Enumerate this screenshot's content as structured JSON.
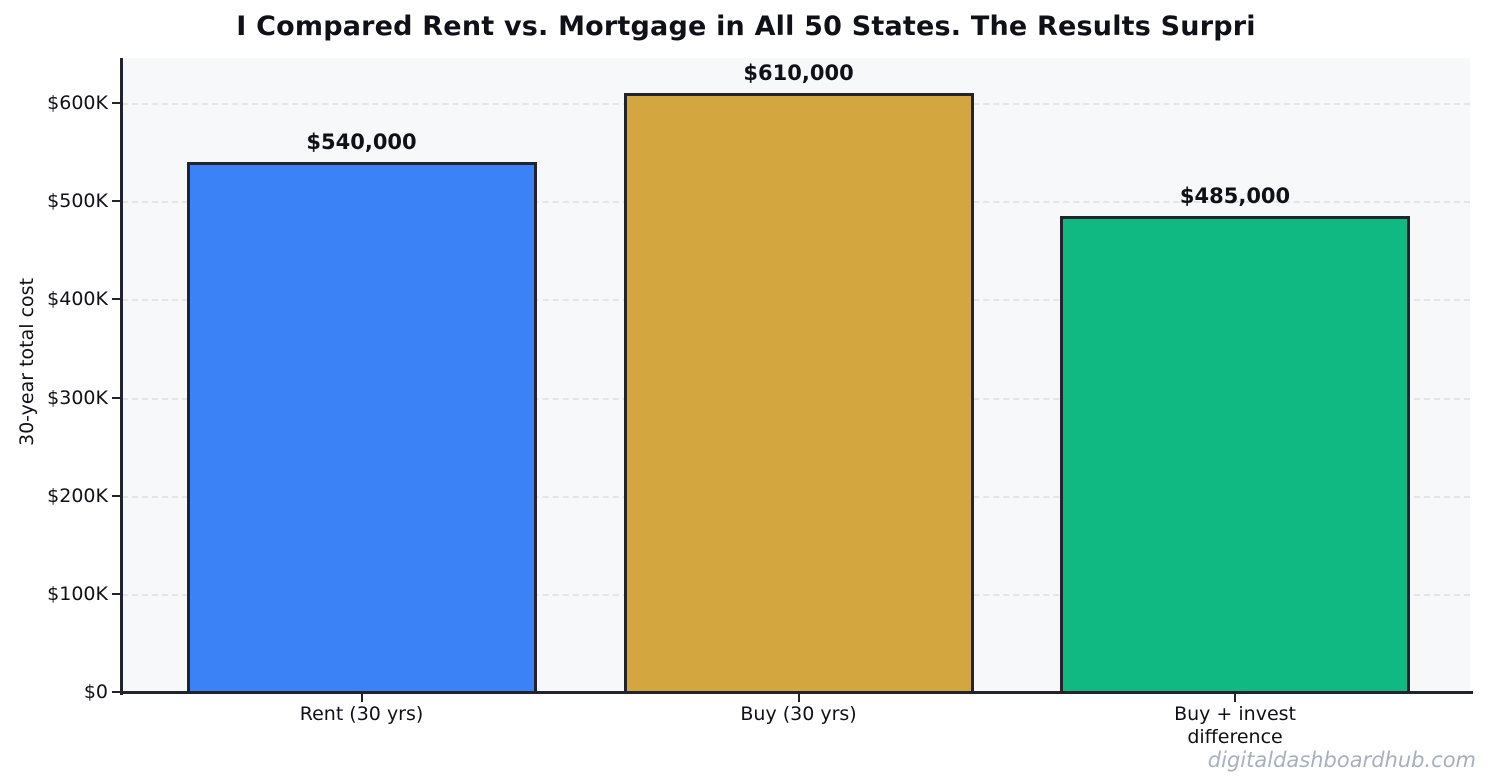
{
  "watermark": "digitaldashboardhub.com",
  "chart_data": {
    "type": "bar",
    "title": "I Compared Rent vs. Mortgage in All 50 States. The Results Surpri",
    "xlabel": "",
    "ylabel": "30-year total cost",
    "categories": [
      "Rent (30 yrs)",
      "Buy (30 yrs)",
      "Buy + invest\ndifference"
    ],
    "values": [
      540000,
      610000,
      485000
    ],
    "value_labels": [
      "$540,000",
      "$610,000",
      "$485,000"
    ],
    "bar_colors": [
      "#3b82f6",
      "#d4a63f",
      "#10b981"
    ],
    "bar_edge_color": "#22232d",
    "ytick_values": [
      0,
      100000,
      200000,
      300000,
      400000,
      500000,
      600000
    ],
    "ytick_labels": [
      "$0",
      "$100K",
      "$200K",
      "$300K",
      "$400K",
      "$500K",
      "$600K"
    ],
    "ylim": [
      0,
      646000
    ],
    "grid": true,
    "grid_style": "dashed",
    "legend_position": "none",
    "plot_background": "#f7f8fa",
    "grid_color": "#e4e5e9"
  }
}
